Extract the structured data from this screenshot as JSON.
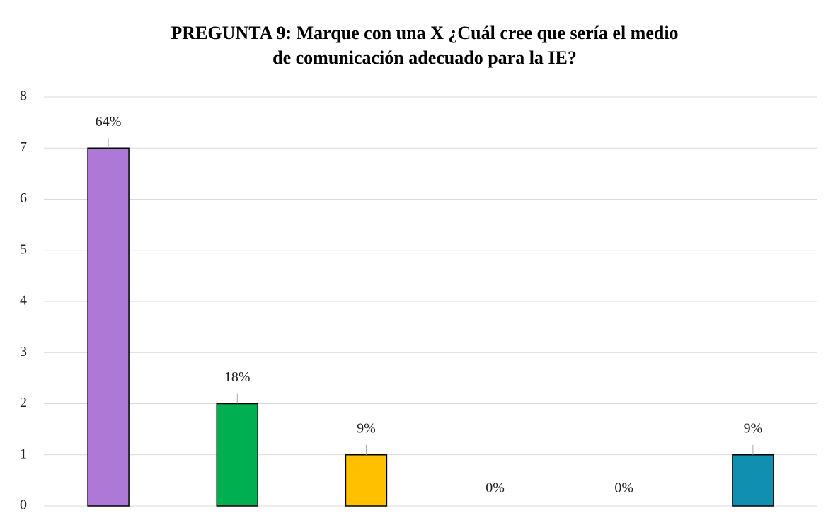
{
  "chart_data": {
    "type": "bar",
    "title": [
      "PREGUNTA 9: Marque con una X  ¿Cuál cree que sería el medio",
      "de comunicación adecuado para la IE?"
    ],
    "categories": [
      null,
      null,
      null,
      null,
      null,
      null
    ],
    "values": [
      7,
      2,
      1,
      0,
      0,
      1
    ],
    "data_labels": [
      "64%",
      "18%",
      "9%",
      "0%",
      "0%",
      "9%"
    ],
    "colors": [
      "#ad78d6",
      "#00b050",
      "#ffc000",
      "#4472c4",
      "#ed7d31",
      "#118fb0"
    ],
    "ylim": [
      0,
      8
    ],
    "yticks": [
      0,
      1,
      2,
      3,
      4,
      5,
      6,
      7,
      8
    ],
    "grid": true
  }
}
